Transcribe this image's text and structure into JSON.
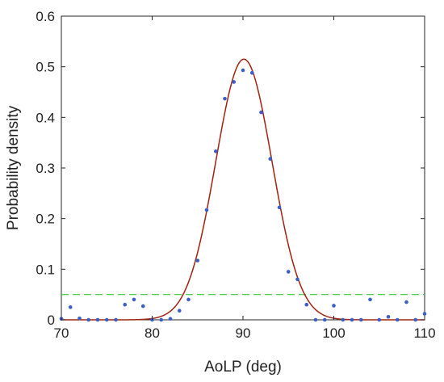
{
  "chart_data": {
    "type": "scatter",
    "title": "",
    "xlabel": "AoLP (deg)",
    "ylabel": "Probability density",
    "xlim": [
      70,
      110
    ],
    "ylim": [
      0,
      0.6
    ],
    "xticks": [
      70,
      80,
      90,
      100,
      110
    ],
    "yticks": [
      0,
      0.1,
      0.2,
      0.3,
      0.4,
      0.5,
      0.6
    ],
    "grid": false,
    "legend": "none",
    "series": [
      {
        "kind": "points",
        "color": "#3a5fc8",
        "x": [
          70,
          71,
          72,
          73,
          74,
          75,
          76,
          77,
          78,
          79,
          80,
          81,
          82,
          83,
          84,
          85,
          86,
          87,
          88,
          89,
          90,
          91,
          92,
          93,
          94,
          95,
          96,
          97,
          98,
          99,
          100,
          101,
          102,
          103,
          104,
          105,
          106,
          107,
          108,
          109,
          110
        ],
        "y": [
          0.002,
          0.025,
          0.003,
          0.0,
          0.0,
          0.0,
          0.0,
          0.03,
          0.04,
          0.027,
          0.0,
          0.0,
          0.002,
          0.018,
          0.04,
          0.117,
          0.217,
          0.333,
          0.437,
          0.47,
          0.493,
          0.488,
          0.41,
          0.318,
          0.222,
          0.095,
          0.08,
          0.03,
          0.0,
          0.0,
          0.028,
          0.0,
          0.0,
          0.0,
          0.04,
          0.0,
          0.006,
          0.0,
          0.035,
          0.0,
          0.012
        ]
      },
      {
        "kind": "curve",
        "color": "#a0220f",
        "mean": 90.1,
        "sigma": 3.1,
        "peak": 0.515
      },
      {
        "kind": "threshold",
        "color": "#33cc33",
        "dash": true,
        "y": 0.05
      }
    ]
  }
}
